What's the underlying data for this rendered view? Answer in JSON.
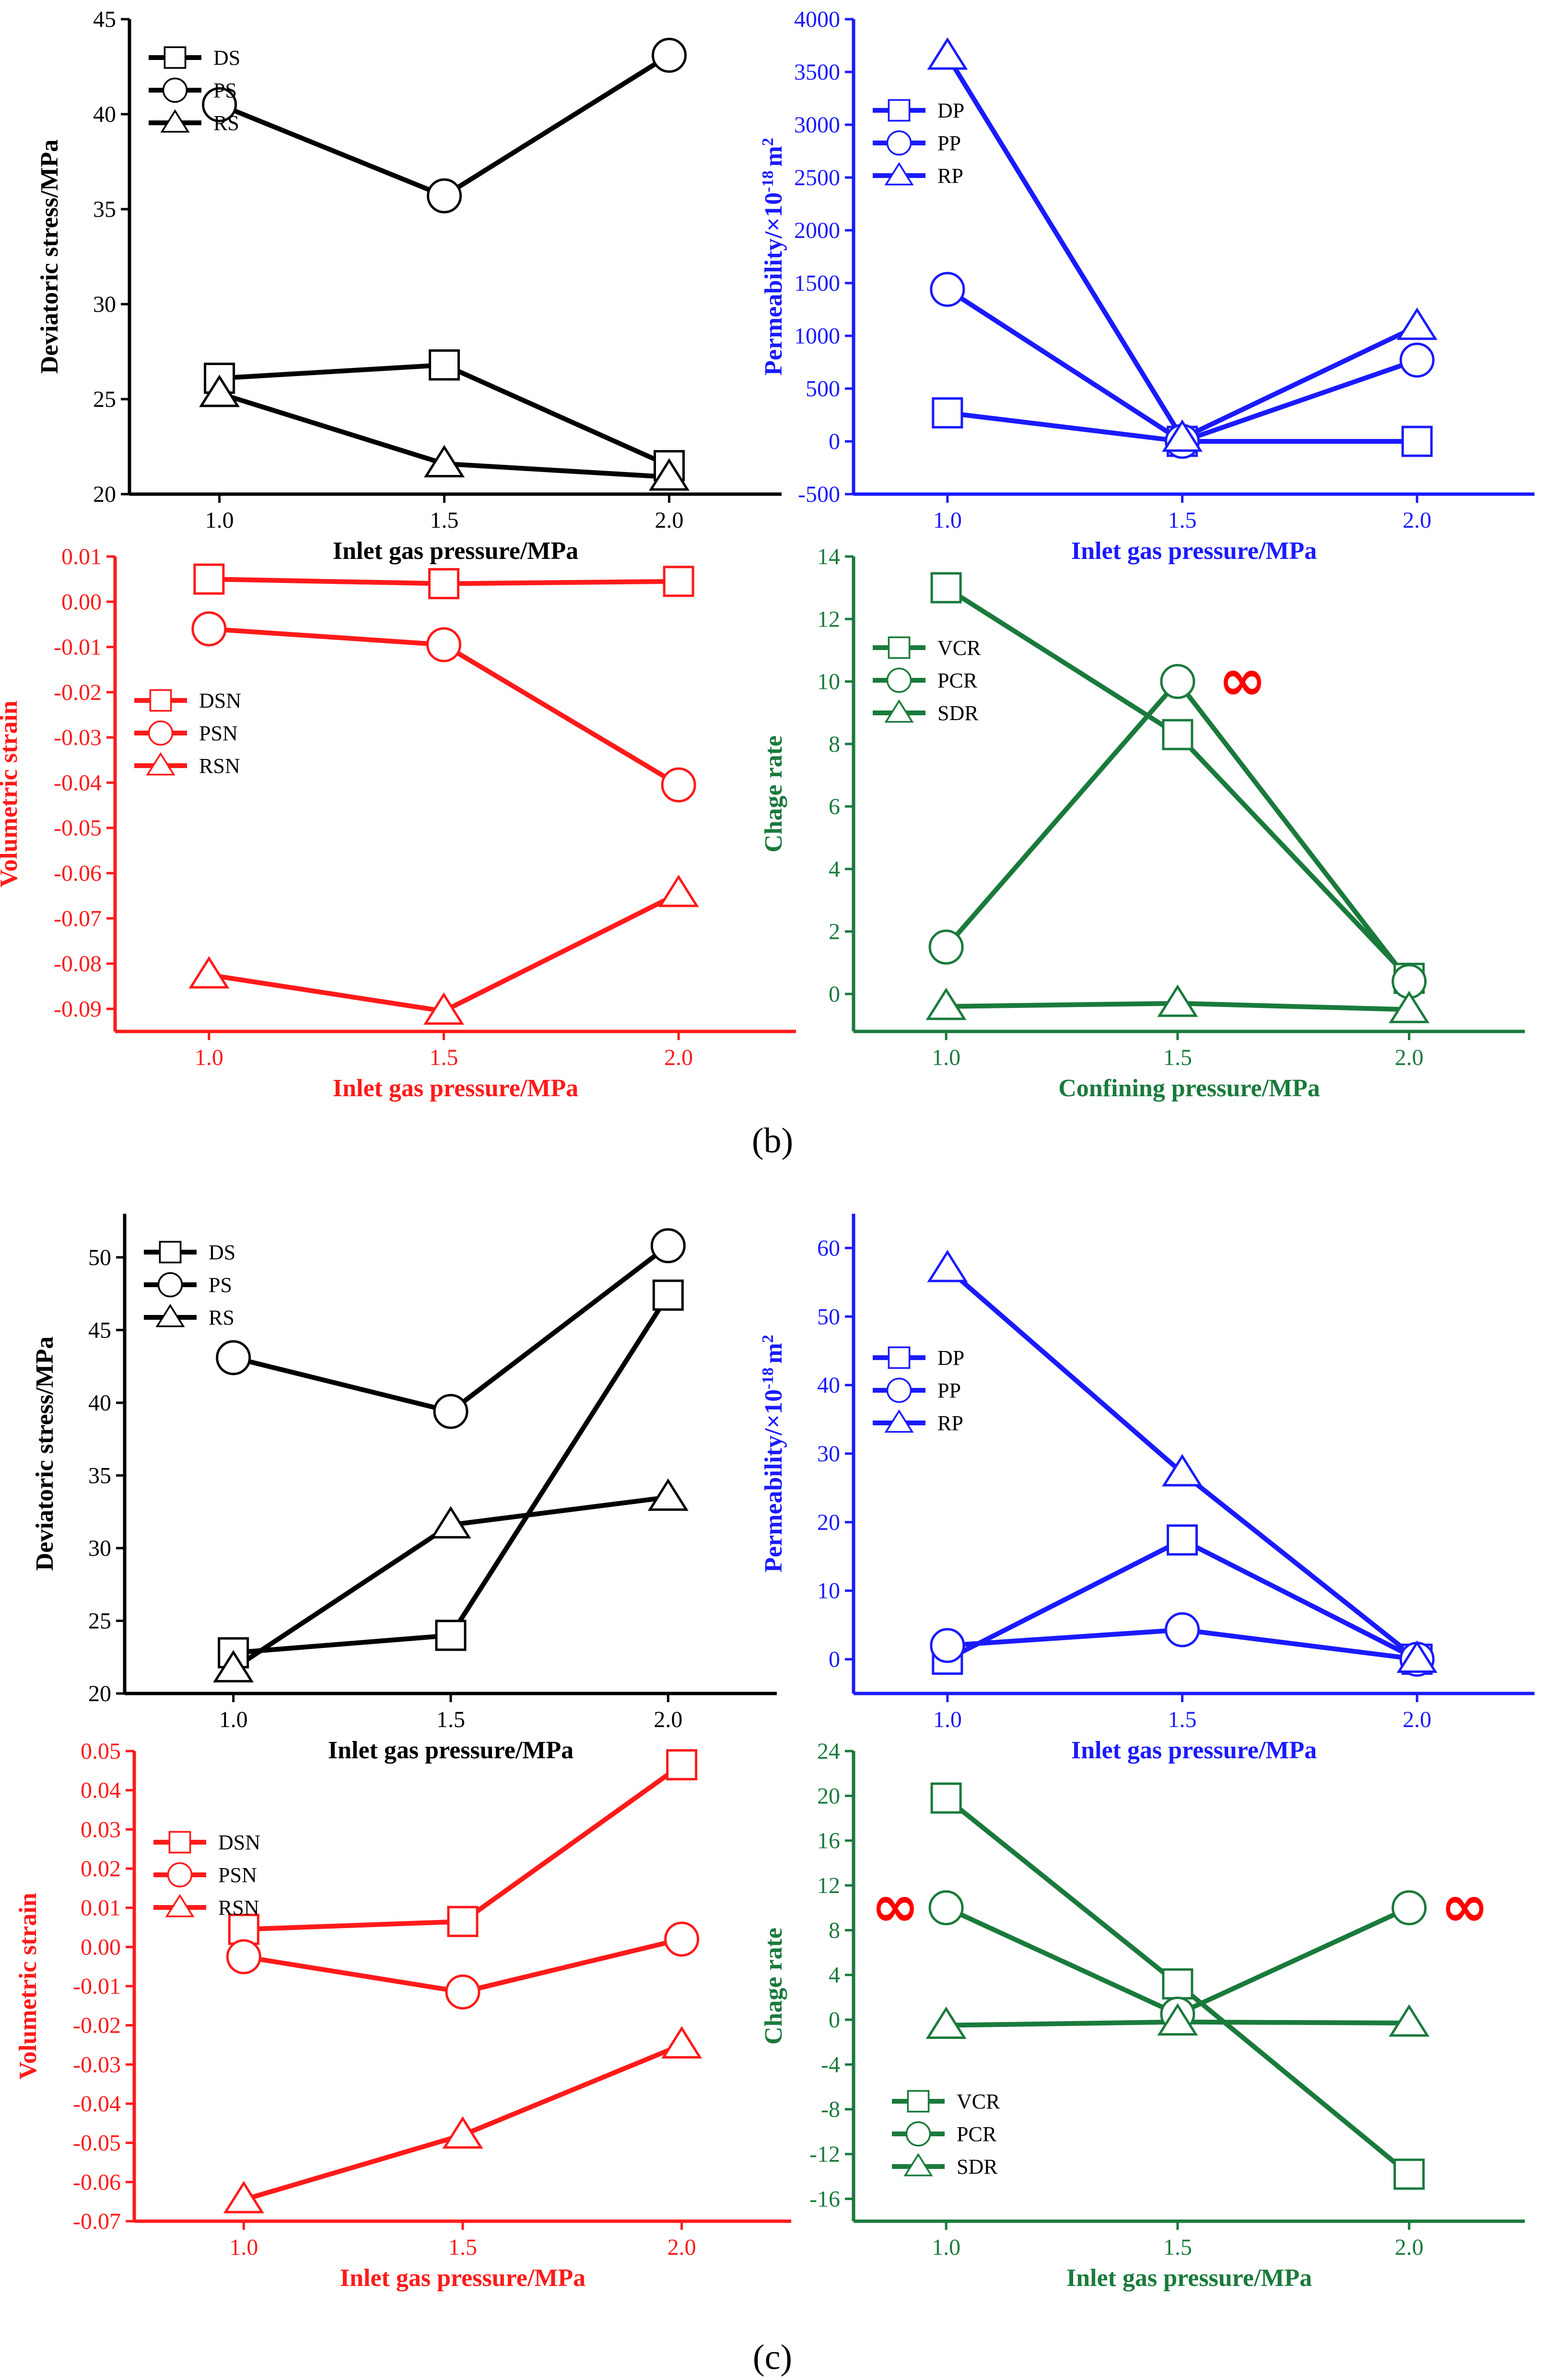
{
  "figure": {
    "panel_labels": [
      "(b)",
      "(c)"
    ]
  },
  "colors": {
    "black": "#000000",
    "blue": "#1a1aff",
    "red": "#ff1a1a",
    "green": "#1a7a3c"
  },
  "chart_data": [
    {
      "id": "b-stress",
      "type": "line",
      "color": "black",
      "xlabel": "Inlet gas pressure/MPa",
      "ylabel": "Deviatoric stress/MPa",
      "x": [
        1.0,
        1.5,
        2.0
      ],
      "xlim": [
        0.8,
        2.25
      ],
      "ylim": [
        20,
        45
      ],
      "xticks": [
        1.0,
        1.5,
        2.0
      ],
      "xtick_labels": [
        "1.0",
        "1.5",
        "2.0"
      ],
      "yticks": [
        20,
        25,
        30,
        35,
        40,
        45
      ],
      "ytick_labels": [
        "20",
        "25",
        "30",
        "35",
        "40",
        "45"
      ],
      "legend_position": "top-left",
      "series": [
        {
          "name": "DS",
          "marker": "square",
          "values": [
            26.1,
            26.8,
            21.5
          ]
        },
        {
          "name": "PS",
          "marker": "circle",
          "values": [
            40.5,
            35.7,
            43.1
          ]
        },
        {
          "name": "RS",
          "marker": "triangle",
          "values": [
            25.3,
            21.6,
            20.9
          ]
        }
      ]
    },
    {
      "id": "b-perm",
      "type": "line",
      "color": "blue",
      "xlabel": "Inlet gas pressure/MPa",
      "ylabel": "Permeability/×10",
      "ylabel_sup": "-18",
      "ylabel_unit": "m",
      "ylabel_unit_sup": "2",
      "x": [
        1.0,
        1.5,
        2.0
      ],
      "xlim": [
        0.8,
        2.25
      ],
      "ylim": [
        -500,
        4000
      ],
      "xticks": [
        1.0,
        1.5,
        2.0
      ],
      "xtick_labels": [
        "1.0",
        "1.5",
        "2.0"
      ],
      "yticks": [
        -500,
        0,
        500,
        1000,
        1500,
        2000,
        2500,
        3000,
        3500,
        4000
      ],
      "ytick_labels": [
        "-500",
        "0",
        "500",
        "1000",
        "1500",
        "2000",
        "2500",
        "3000",
        "3500",
        "4000"
      ],
      "legend_position": "upper-left",
      "series": [
        {
          "name": "DP",
          "marker": "square",
          "values": [
            270,
            0,
            0
          ]
        },
        {
          "name": "PP",
          "marker": "circle",
          "values": [
            1440,
            0,
            770
          ]
        },
        {
          "name": "RP",
          "marker": "triangle",
          "values": [
            3650,
            30,
            1090
          ]
        }
      ]
    },
    {
      "id": "b-strain",
      "type": "line",
      "color": "red",
      "xlabel": "Inlet gas pressure/MPa",
      "ylabel": "Volumetric strain",
      "x": [
        1.0,
        1.5,
        2.0
      ],
      "xlim": [
        0.8,
        2.25
      ],
      "ylim": [
        -0.095,
        0.01
      ],
      "xticks": [
        1.0,
        1.5,
        2.0
      ],
      "xtick_labels": [
        "1.0",
        "1.5",
        "2.0"
      ],
      "yticks": [
        0.01,
        0.0,
        -0.01,
        -0.02,
        -0.03,
        -0.04,
        -0.05,
        -0.06,
        -0.07,
        -0.08,
        -0.09
      ],
      "ytick_labels": [
        "0.01",
        "0.00",
        "-0.01",
        "-0.02",
        "-0.03",
        "-0.04",
        "-0.05",
        "-0.06",
        "-0.07",
        "-0.08",
        "-0.09"
      ],
      "legend_position": "left",
      "series": [
        {
          "name": "DSN",
          "marker": "square",
          "values": [
            0.005,
            0.004,
            0.0045
          ]
        },
        {
          "name": "PSN",
          "marker": "circle",
          "values": [
            -0.006,
            -0.0095,
            -0.0405
          ]
        },
        {
          "name": "RSN",
          "marker": "triangle",
          "values": [
            -0.0825,
            -0.0905,
            -0.0645
          ]
        }
      ]
    },
    {
      "id": "b-rate",
      "type": "line",
      "color": "green",
      "xlabel": "Confining pressure/MPa",
      "ylabel": "Chage rate",
      "x": [
        1.0,
        1.5,
        2.0
      ],
      "xlim": [
        0.8,
        2.25
      ],
      "ylim": [
        -1.2,
        14
      ],
      "xticks": [
        1.0,
        1.5,
        2.0
      ],
      "xtick_labels": [
        "1.0",
        "1.5",
        "2.0"
      ],
      "yticks": [
        0,
        2,
        4,
        6,
        8,
        10,
        12,
        14
      ],
      "ytick_labels": [
        "0",
        "2",
        "4",
        "6",
        "8",
        "10",
        "12",
        "14"
      ],
      "legend_position": "upper-left",
      "series": [
        {
          "name": "VCR",
          "marker": "square",
          "values": [
            13.0,
            8.3,
            0.5
          ]
        },
        {
          "name": "PCR",
          "marker": "circle",
          "values": [
            1.5,
            10.0,
            0.4
          ]
        },
        {
          "name": "SDR",
          "marker": "triangle",
          "values": [
            -0.4,
            -0.3,
            -0.5
          ]
        }
      ],
      "annotations": [
        {
          "text": "∞",
          "x": 1.64,
          "y": 10.0
        }
      ]
    },
    {
      "id": "c-stress",
      "type": "line",
      "color": "black",
      "xlabel": "Inlet gas pressure/MPa",
      "ylabel": "Deviatoric stress/MPa",
      "x": [
        1.0,
        1.5,
        2.0
      ],
      "xlim": [
        0.75,
        2.25
      ],
      "ylim": [
        20,
        53
      ],
      "xticks": [
        1.0,
        1.5,
        2.0
      ],
      "xtick_labels": [
        "1.0",
        "1.5",
        "2.0"
      ],
      "yticks": [
        20,
        25,
        30,
        35,
        40,
        45,
        50
      ],
      "ytick_labels": [
        "20",
        "25",
        "30",
        "35",
        "40",
        "45",
        "50"
      ],
      "legend_position": "top-left",
      "series": [
        {
          "name": "DS",
          "marker": "square",
          "values": [
            22.8,
            24.0,
            47.4
          ]
        },
        {
          "name": "PS",
          "marker": "circle",
          "values": [
            43.1,
            39.4,
            50.8
          ]
        },
        {
          "name": "RS",
          "marker": "triangle",
          "values": [
            21.7,
            31.6,
            33.5
          ]
        }
      ]
    },
    {
      "id": "c-perm",
      "type": "line",
      "color": "blue",
      "xlabel": "Inlet gas pressure/MPa",
      "ylabel": "Permeability/×10",
      "ylabel_sup": "-18",
      "ylabel_unit": "m",
      "ylabel_unit_sup": "2",
      "x": [
        1.0,
        1.5,
        2.0
      ],
      "xlim": [
        0.8,
        2.25
      ],
      "ylim": [
        -5,
        65
      ],
      "xticks": [
        1.0,
        1.5,
        2.0
      ],
      "xtick_labels": [
        "1.0",
        "1.5",
        "2.0"
      ],
      "yticks": [
        0,
        10,
        20,
        30,
        40,
        50,
        60
      ],
      "ytick_labels": [
        "0",
        "10",
        "20",
        "30",
        "40",
        "50",
        "60"
      ],
      "legend_position": "left",
      "series": [
        {
          "name": "DP",
          "marker": "square",
          "values": [
            0,
            17.4,
            0
          ]
        },
        {
          "name": "PP",
          "marker": "circle",
          "values": [
            2.0,
            4.3,
            0
          ]
        },
        {
          "name": "RP",
          "marker": "triangle",
          "values": [
            57.0,
            27.2,
            0
          ]
        }
      ]
    },
    {
      "id": "c-strain",
      "type": "line",
      "color": "red",
      "xlabel": "Inlet gas pressure/MPa",
      "ylabel": "Volumetric strain",
      "x": [
        1.0,
        1.5,
        2.0
      ],
      "xlim": [
        0.75,
        2.25
      ],
      "ylim": [
        -0.07,
        0.05
      ],
      "xticks": [
        1.0,
        1.5,
        2.0
      ],
      "xtick_labels": [
        "1.0",
        "1.5",
        "2.0"
      ],
      "yticks": [
        0.05,
        0.04,
        0.03,
        0.02,
        0.01,
        0.0,
        -0.01,
        -0.02,
        -0.03,
        -0.04,
        -0.05,
        -0.06,
        -0.07
      ],
      "ytick_labels": [
        "0.05",
        "0.04",
        "0.03",
        "0.02",
        "0.01",
        "0.00",
        "-0.01",
        "-0.02",
        "-0.03",
        "-0.04",
        "-0.05",
        "-0.06",
        "-0.07"
      ],
      "legend_position": "upper-left",
      "series": [
        {
          "name": "DSN",
          "marker": "square",
          "values": [
            0.0045,
            0.0065,
            0.0465
          ]
        },
        {
          "name": "PSN",
          "marker": "circle",
          "values": [
            -0.0025,
            -0.0115,
            0.002
          ]
        },
        {
          "name": "RSN",
          "marker": "triangle",
          "values": [
            -0.0645,
            -0.048,
            -0.025
          ]
        }
      ]
    },
    {
      "id": "c-rate",
      "type": "line",
      "color": "green",
      "xlabel": "Inlet gas pressure/MPa",
      "ylabel": "Chage rate",
      "x": [
        1.0,
        1.5,
        2.0
      ],
      "xlim": [
        0.8,
        2.25
      ],
      "ylim": [
        -18,
        24
      ],
      "xticks": [
        1.0,
        1.5,
        2.0
      ],
      "xtick_labels": [
        "1.0",
        "1.5",
        "2.0"
      ],
      "yticks": [
        24,
        20,
        16,
        12,
        8,
        4,
        0,
        -4,
        -8,
        -12,
        -16
      ],
      "ytick_labels": [
        "24",
        "20",
        "16",
        "12",
        "8",
        "4",
        "0",
        "-4",
        "-8",
        "-12",
        "-16"
      ],
      "legend_position": "lower-left",
      "series": [
        {
          "name": "VCR",
          "marker": "square",
          "values": [
            19.8,
            3.2,
            -13.8
          ]
        },
        {
          "name": "PCR",
          "marker": "circle",
          "values": [
            10.0,
            0.5,
            10.0
          ]
        },
        {
          "name": "SDR",
          "marker": "triangle",
          "values": [
            -0.5,
            -0.2,
            -0.3
          ]
        }
      ],
      "annotations": [
        {
          "text": "∞",
          "x": 0.89,
          "y": 10.0
        },
        {
          "text": "∞",
          "x": 2.12,
          "y": 10.0
        }
      ]
    }
  ]
}
